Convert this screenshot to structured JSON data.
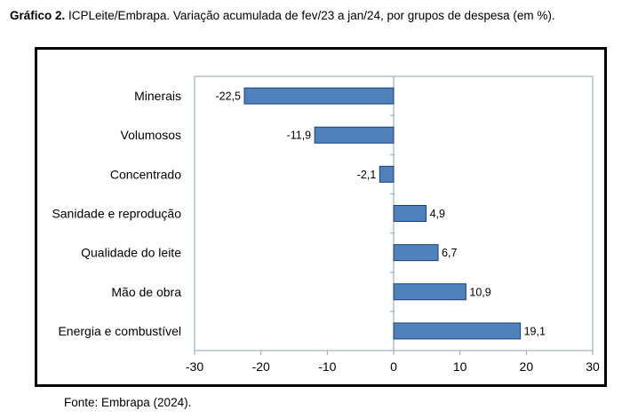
{
  "caption": {
    "prefix": "Gráfico 2.",
    "text": " ICPLeite/Embrapa. Variação acumulada de fev/23 a jan/24, por grupos de despesa (em %)."
  },
  "source": "Fonte: Embrapa (2024).",
  "chart_data": {
    "type": "bar",
    "orientation": "horizontal",
    "categories": [
      "Minerais",
      "Volumosos",
      "Concentrado",
      "Sanidade e reprodução",
      "Qualidade do leite",
      "Mão de obra",
      "Energia e combustível"
    ],
    "values": [
      -22.5,
      -11.9,
      -2.1,
      4.9,
      6.7,
      10.9,
      19.1
    ],
    "value_labels": [
      "-22,5",
      "-11,9",
      "-2,1",
      "4,9",
      "6,7",
      "10,9",
      "19,1"
    ],
    "xlim": [
      -30,
      30
    ],
    "xticks": [
      -30,
      -20,
      -10,
      0,
      10,
      20,
      30
    ],
    "grid": false,
    "bar_color": "#4f81bd",
    "bar_edge": "#1f3f6f",
    "axis_color": "#8aa5b8"
  }
}
